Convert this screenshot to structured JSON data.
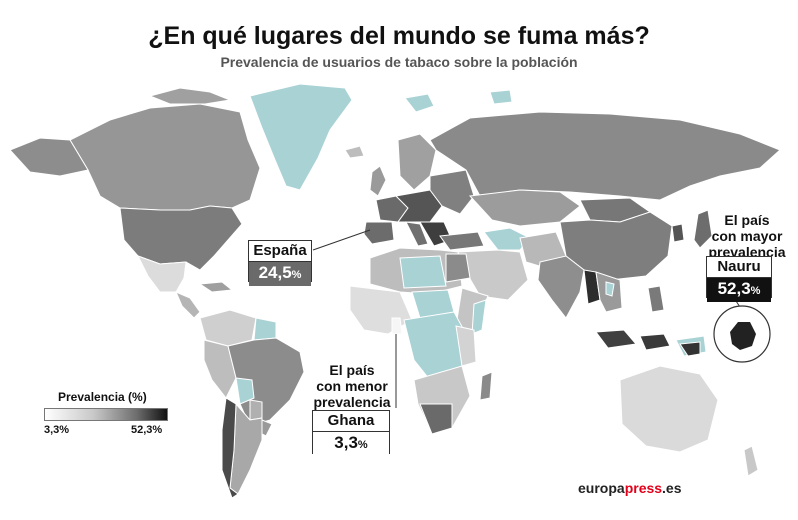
{
  "header": {
    "title": "¿En qué lugares del mundo se fuma más?",
    "subtitle": "Prevalencia de usuarios de tabaco sobre la población"
  },
  "callouts": {
    "spain": {
      "name": "España",
      "value": "24,5",
      "unit": "%"
    },
    "max": {
      "note_line1": "El país",
      "note_line2": "con mayor",
      "note_line3": "prevalencia",
      "name": "Nauru",
      "value": "52,3",
      "unit": "%"
    },
    "min": {
      "note_line1": "El país",
      "note_line2": "con menor",
      "note_line3": "prevalencia",
      "name": "Ghana",
      "value": "3,3",
      "unit": "%"
    }
  },
  "legend": {
    "title": "Prevalencia (%)",
    "min_label": "3,3%",
    "max_label": "52,3%"
  },
  "brand": {
    "part1": "europa",
    "part2": "press",
    "part3": ".es"
  },
  "colors": {
    "no_data": "#a9d2d5",
    "scale_low": "#ffffff",
    "scale_high": "#111111",
    "ocean": "#ffffff",
    "brand_accent": "#e2001a"
  }
}
